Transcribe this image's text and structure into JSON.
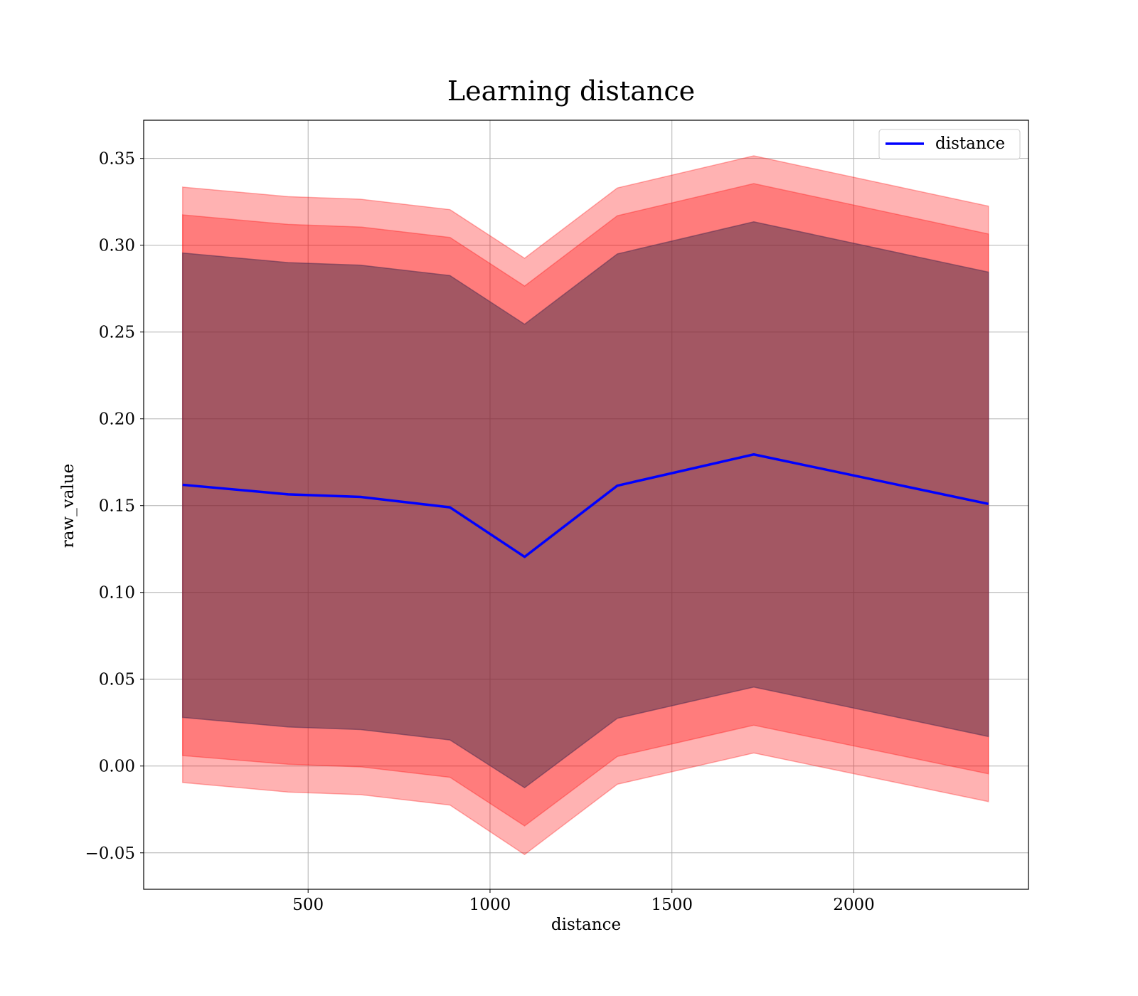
{
  "chart_data": {
    "type": "line",
    "title": "Learning distance",
    "xlabel": "distance",
    "ylabel": "raw_value",
    "xlim": [
      48,
      2480
    ],
    "ylim": [
      -0.071,
      0.372
    ],
    "xticks": [
      500,
      1000,
      1500,
      2000
    ],
    "yticks": [
      -0.05,
      0.0,
      0.05,
      0.1,
      0.15,
      0.2,
      0.25,
      0.3,
      0.35
    ],
    "ytick_labels": [
      "−0.05",
      "0.00",
      "0.05",
      "0.10",
      "0.15",
      "0.20",
      "0.25",
      "0.30",
      "0.35"
    ],
    "xtick_labels": [
      "500",
      "1000",
      "1500",
      "2000"
    ],
    "grid": true,
    "legend_position": "top-right",
    "x": [
      155,
      445,
      645,
      890,
      1095,
      1350,
      1725,
      2370
    ],
    "series": [
      {
        "name": "distance",
        "color": "#0000ff",
        "values": [
          0.162,
          0.1565,
          0.155,
          0.149,
          0.1205,
          0.1615,
          0.1795,
          0.151
        ]
      }
    ],
    "bands": [
      {
        "color": "#ff0000",
        "opacity": 0.3,
        "lower": [
          -0.0095,
          -0.015,
          -0.0165,
          -0.0225,
          -0.051,
          -0.0105,
          0.0075,
          -0.0205
        ],
        "upper": [
          0.3335,
          0.328,
          0.3265,
          0.3205,
          0.2925,
          0.333,
          0.3515,
          0.3225
        ]
      },
      {
        "color": "#ff0000",
        "opacity": 0.3,
        "lower": [
          0.006,
          0.001,
          -0.0005,
          -0.0065,
          -0.0345,
          0.0055,
          0.0235,
          -0.0045
        ],
        "upper": [
          0.3175,
          0.312,
          0.3105,
          0.3045,
          0.2765,
          0.317,
          0.3355,
          0.3065
        ]
      },
      {
        "color": "#008000",
        "opacity": 0.3,
        "lower": [
          0.028,
          0.0225,
          0.021,
          0.015,
          -0.0125,
          0.0275,
          0.0455,
          0.017
        ],
        "upper": [
          0.2955,
          0.29,
          0.2885,
          0.2825,
          0.2545,
          0.295,
          0.3135,
          0.2845
        ]
      },
      {
        "color": "#800080",
        "opacity": 0.3,
        "lower": [
          0.028,
          0.0225,
          0.021,
          0.015,
          -0.0125,
          0.0275,
          0.0455,
          0.017
        ],
        "upper": [
          0.2955,
          0.29,
          0.2885,
          0.2825,
          0.2545,
          0.295,
          0.3135,
          0.2845
        ]
      }
    ]
  }
}
